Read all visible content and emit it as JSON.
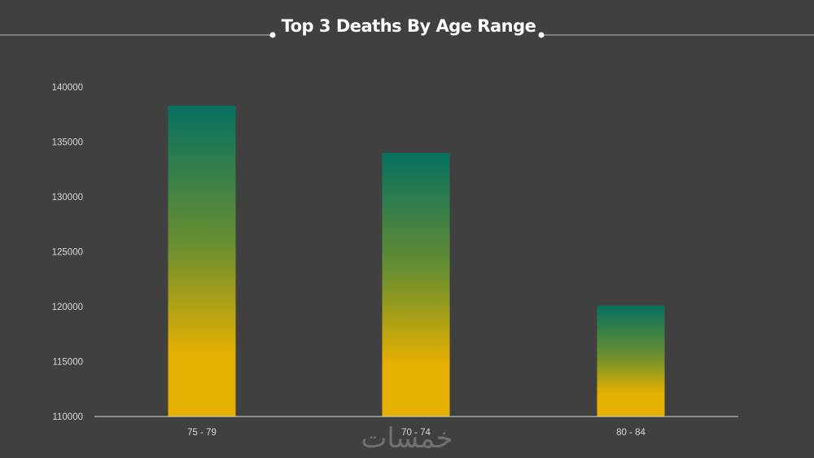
{
  "chart_data": {
    "type": "bar",
    "title": "Top 3 Deaths By Age Range",
    "xlabel": "",
    "ylabel": "",
    "categories": [
      "75 - 79",
      "70 - 74",
      "80 - 84"
    ],
    "values": [
      138300,
      134000,
      120100
    ],
    "ylim": [
      110000,
      140000
    ],
    "yticks": [
      "110000",
      "115000",
      "120000",
      "125000",
      "130000",
      "135000",
      "140000"
    ],
    "grid": false,
    "legend": "none",
    "colors": {
      "bar_top": "#06705f",
      "bar_mid": "#6a8f30",
      "bar_bottom": "#e6b000",
      "background": "#414041",
      "axis": "#d9d9d9"
    }
  },
  "watermark": "خمسات"
}
